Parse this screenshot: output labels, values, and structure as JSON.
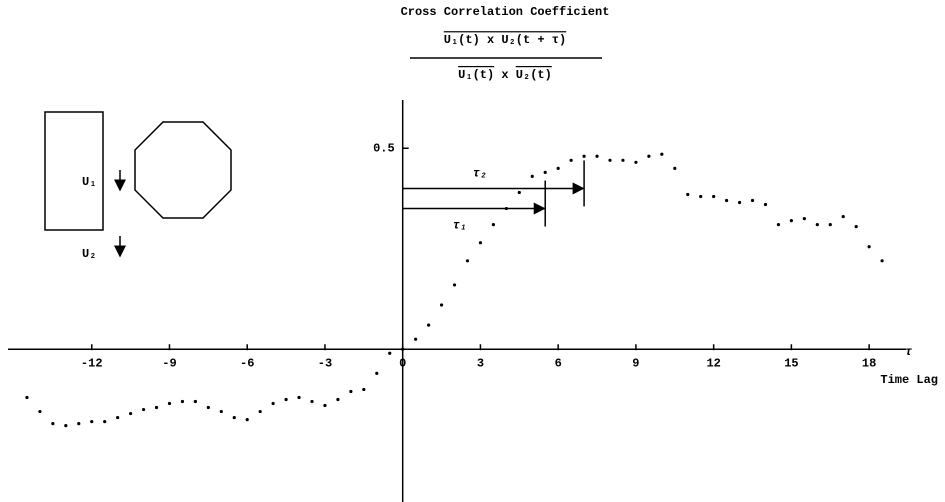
{
  "chart_data": {
    "type": "scatter",
    "title": "Cross Correlation Coefficient",
    "formula": {
      "numerator": "U₁(t) x U₂(t + τ)",
      "denominator": [
        "U₁(t)",
        "x",
        "U₂(t)"
      ]
    },
    "x_label": "τ",
    "x_sublabel": "Time Lag",
    "inset_labels": [
      "U₁",
      "U₂"
    ],
    "xlim": [
      -15,
      19.5
    ],
    "ylim": [
      -0.38,
      0.62
    ],
    "xticks": [
      -12,
      -9,
      -6,
      -3,
      0,
      3,
      6,
      9,
      12,
      15,
      18
    ],
    "yticks": [
      0.5
    ],
    "color": "#000000",
    "x": [
      -14.5,
      -14,
      -13.5,
      -13,
      -12.5,
      -12,
      -11.5,
      -11,
      -10.5,
      -10,
      -9.5,
      -9,
      -8.5,
      -8,
      -7.5,
      -7,
      -6.5,
      -6,
      -5.5,
      -5,
      -4.5,
      -4,
      -3.5,
      -3,
      -2.5,
      -2,
      -1.5,
      -1,
      -0.5,
      0,
      0.5,
      1,
      1.5,
      2,
      2.5,
      3,
      3.5,
      4,
      4.5,
      5,
      5.5,
      6,
      6.5,
      7,
      7.5,
      8,
      8.5,
      9,
      9.5,
      10,
      10.5,
      11,
      11.5,
      12,
      12.5,
      13,
      13.5,
      14,
      14.5,
      15,
      15.5,
      16,
      16.5,
      17,
      17.5,
      18,
      18.5
    ],
    "values": [
      -0.12,
      -0.155,
      -0.185,
      -0.19,
      -0.185,
      -0.18,
      -0.18,
      -0.17,
      -0.16,
      -0.15,
      -0.145,
      -0.135,
      -0.13,
      -0.13,
      -0.145,
      -0.155,
      -0.17,
      -0.175,
      -0.155,
      -0.135,
      -0.125,
      -0.12,
      -0.13,
      -0.14,
      -0.125,
      -0.105,
      -0.1,
      -0.06,
      -0.01,
      0.0,
      0.025,
      0.06,
      0.11,
      0.16,
      0.22,
      0.265,
      0.31,
      0.35,
      0.39,
      0.43,
      0.44,
      0.45,
      0.47,
      0.48,
      0.48,
      0.47,
      0.47,
      0.465,
      0.48,
      0.485,
      0.45,
      0.385,
      0.38,
      0.38,
      0.37,
      0.365,
      0.37,
      0.36,
      0.31,
      0.32,
      0.325,
      0.31,
      0.31,
      0.33,
      0.305,
      0.255,
      0.22
    ],
    "tau_markers": [
      {
        "label": "τ₁",
        "value": 5.5,
        "level": 0.35
      },
      {
        "label": "τ₂",
        "value": 7,
        "level": 0.4
      }
    ]
  }
}
